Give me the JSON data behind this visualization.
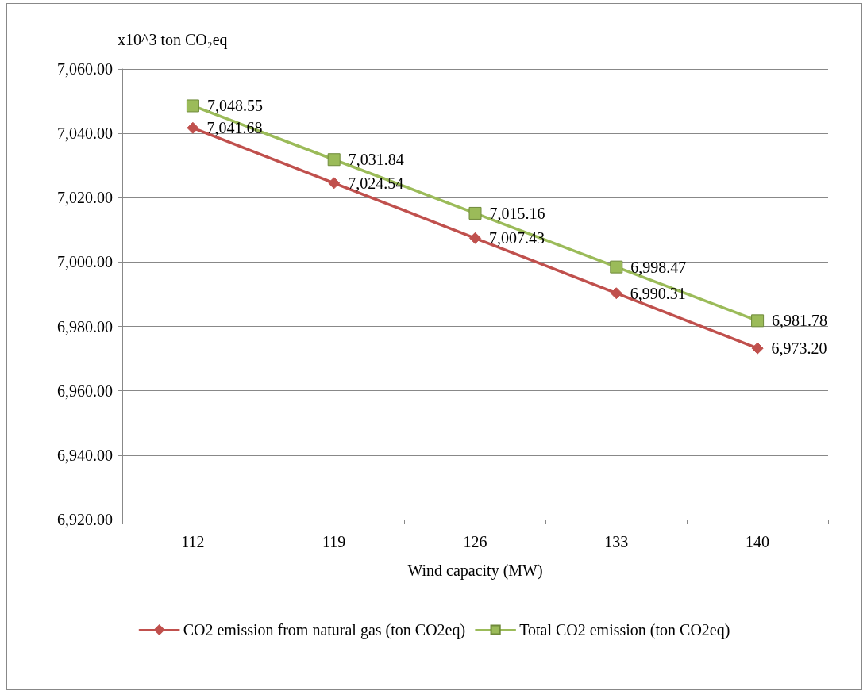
{
  "chart_data": {
    "type": "line",
    "xlabel": "Wind capacity (MW)",
    "ylabel": "x10^3 ton CO₂eq",
    "categories": [
      "112",
      "119",
      "126",
      "133",
      "140"
    ],
    "series": [
      {
        "name": "CO2 emission from natural gas (ton CO2eq)",
        "color": "#c0504d",
        "marker": "diamond",
        "values": [
          7041.68,
          7024.54,
          7007.43,
          6990.31,
          6973.2
        ],
        "value_labels": [
          "7,041.68",
          "7,024.54",
          "7,007.43",
          "6,990.31",
          "6,973.20"
        ]
      },
      {
        "name": "Total CO2 emission (ton CO2eq)",
        "color": "#9bbb59",
        "marker": "square",
        "values": [
          7048.55,
          7031.84,
          7015.16,
          6998.47,
          6981.78
        ],
        "value_labels": [
          "7,048.55",
          "7,031.84",
          "7,015.16",
          "6,998.47",
          "6,981.78"
        ]
      }
    ],
    "ylim": [
      6920,
      7060
    ],
    "yticks": [
      {
        "value": 6920,
        "label": "6,920.00"
      },
      {
        "value": 6940,
        "label": "6,940.00"
      },
      {
        "value": 6960,
        "label": "6,960.00"
      },
      {
        "value": 6980,
        "label": "6,980.00"
      },
      {
        "value": 7000,
        "label": "7,000.00"
      },
      {
        "value": 7020,
        "label": "7,020.00"
      },
      {
        "value": 7040,
        "label": "7,040.00"
      },
      {
        "value": 7060,
        "label": "7,060.00"
      }
    ],
    "grid": "y",
    "legend": "bottom",
    "line_style": "solid"
  }
}
